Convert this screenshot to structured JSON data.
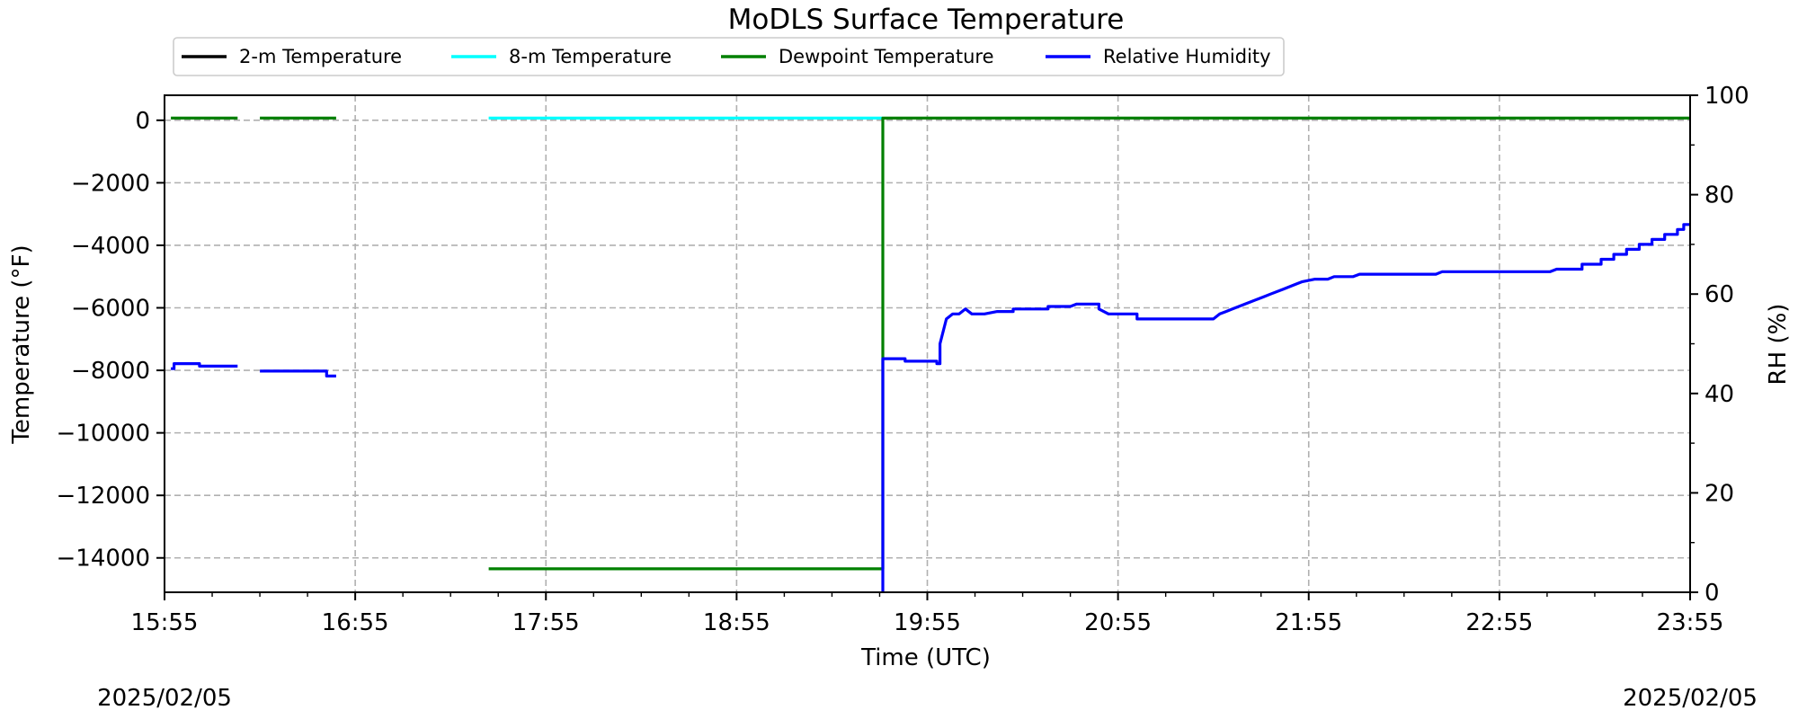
{
  "chart_data": {
    "type": "line",
    "title": "MoDLS Surface Temperature",
    "xlabel": "Time (UTC)",
    "ylabel": "Temperature ($^\\circ$F)",
    "ylabel_display": "Temperature (°F)",
    "y2label": "RH (%)",
    "date_left": "2025/02/05",
    "date_right": "2025/02/05",
    "x_ticks": [
      "15:55",
      "16:55",
      "17:55",
      "18:55",
      "19:55",
      "20:55",
      "21:55",
      "22:55",
      "23:55"
    ],
    "x_range_minutes": [
      0,
      480
    ],
    "ylim": [
      -15100,
      800
    ],
    "y_ticks": [
      0,
      -2000,
      -4000,
      -6000,
      -8000,
      -10000,
      -12000,
      -14000
    ],
    "y_tick_labels": [
      "0",
      "−2000",
      "−4000",
      "−6000",
      "−8000",
      "−10000",
      "−12000",
      "−14000"
    ],
    "y2lim": [
      0,
      100
    ],
    "y2_ticks": [
      0,
      20,
      40,
      60,
      80,
      100
    ],
    "grid": true,
    "legend_placement": "top, above plot",
    "series": [
      {
        "name": "2-m Temperature",
        "axis": "left",
        "color": "#000000",
        "segments": []
      },
      {
        "name": "8-m Temperature",
        "axis": "left",
        "color": "#00ffff",
        "segments": [
          [
            [
              102,
              70
            ],
            [
              226,
              70
            ]
          ]
        ]
      },
      {
        "name": "Dewpoint Temperature",
        "axis": "left",
        "color": "#008000",
        "segments": [
          [
            [
              2,
              70
            ],
            [
              23,
              70
            ]
          ],
          [
            [
              30,
              70
            ],
            [
              54,
              70
            ]
          ],
          [
            [
              102,
              -14350
            ],
            [
              226,
              -14350
            ],
            [
              226,
              70
            ],
            [
              480,
              70
            ]
          ]
        ]
      },
      {
        "name": "Relative Humidity",
        "axis": "right",
        "color": "#0000ff",
        "segments": [
          [
            [
              2,
              45
            ],
            [
              3,
              45
            ],
            [
              3,
              46
            ],
            [
              11,
              46
            ],
            [
              11,
              45.5
            ],
            [
              23,
              45.5
            ]
          ],
          [
            [
              30,
              44.5
            ],
            [
              51,
              44.5
            ],
            [
              51,
              43.5
            ],
            [
              54,
              43.5
            ]
          ],
          [
            [
              226,
              0
            ],
            [
              226,
              47
            ],
            [
              233,
              47
            ],
            [
              233,
              46.5
            ],
            [
              243,
              46.5
            ],
            [
              243,
              46
            ],
            [
              244,
              46
            ],
            [
              244,
              50
            ],
            [
              246,
              55
            ],
            [
              248,
              56
            ],
            [
              250,
              56
            ],
            [
              252,
              57
            ],
            [
              254,
              56
            ],
            [
              258,
              56
            ],
            [
              262,
              56.5
            ],
            [
              267,
              56.5
            ],
            [
              267,
              57
            ],
            [
              278,
              57
            ],
            [
              278,
              57.5
            ],
            [
              285,
              57.5
            ],
            [
              287,
              58
            ],
            [
              294,
              58
            ],
            [
              294,
              57
            ],
            [
              297,
              56
            ],
            [
              306,
              56
            ],
            [
              306,
              55
            ],
            [
              330,
              55
            ],
            [
              332,
              56
            ],
            [
              334,
              56.5
            ],
            [
              336,
              57
            ],
            [
              338,
              57.5
            ],
            [
              340,
              58
            ],
            [
              342,
              58.5
            ],
            [
              344,
              59
            ],
            [
              346,
              59.5
            ],
            [
              348,
              60
            ],
            [
              352,
              61
            ],
            [
              356,
              62
            ],
            [
              358,
              62.5
            ],
            [
              362,
              63
            ],
            [
              366,
              63
            ],
            [
              368,
              63.5
            ],
            [
              374,
              63.5
            ],
            [
              376,
              64
            ],
            [
              390,
              64
            ],
            [
              396,
              64
            ],
            [
              400,
              64
            ],
            [
              402,
              64.5
            ],
            [
              418,
              64.5
            ],
            [
              420,
              64.5
            ],
            [
              426,
              64.5
            ],
            [
              436,
              64.5
            ],
            [
              438,
              65
            ],
            [
              446,
              65
            ],
            [
              446,
              66
            ],
            [
              452,
              66
            ],
            [
              452,
              67
            ],
            [
              456,
              67
            ],
            [
              456,
              68
            ],
            [
              460,
              68
            ],
            [
              460,
              69
            ],
            [
              464,
              69
            ],
            [
              464,
              70
            ],
            [
              468,
              70
            ],
            [
              468,
              71
            ],
            [
              472,
              71
            ],
            [
              472,
              72
            ],
            [
              476,
              72
            ],
            [
              476,
              73
            ],
            [
              478,
              73
            ],
            [
              478,
              74
            ],
            [
              480,
              74
            ]
          ]
        ]
      }
    ]
  }
}
